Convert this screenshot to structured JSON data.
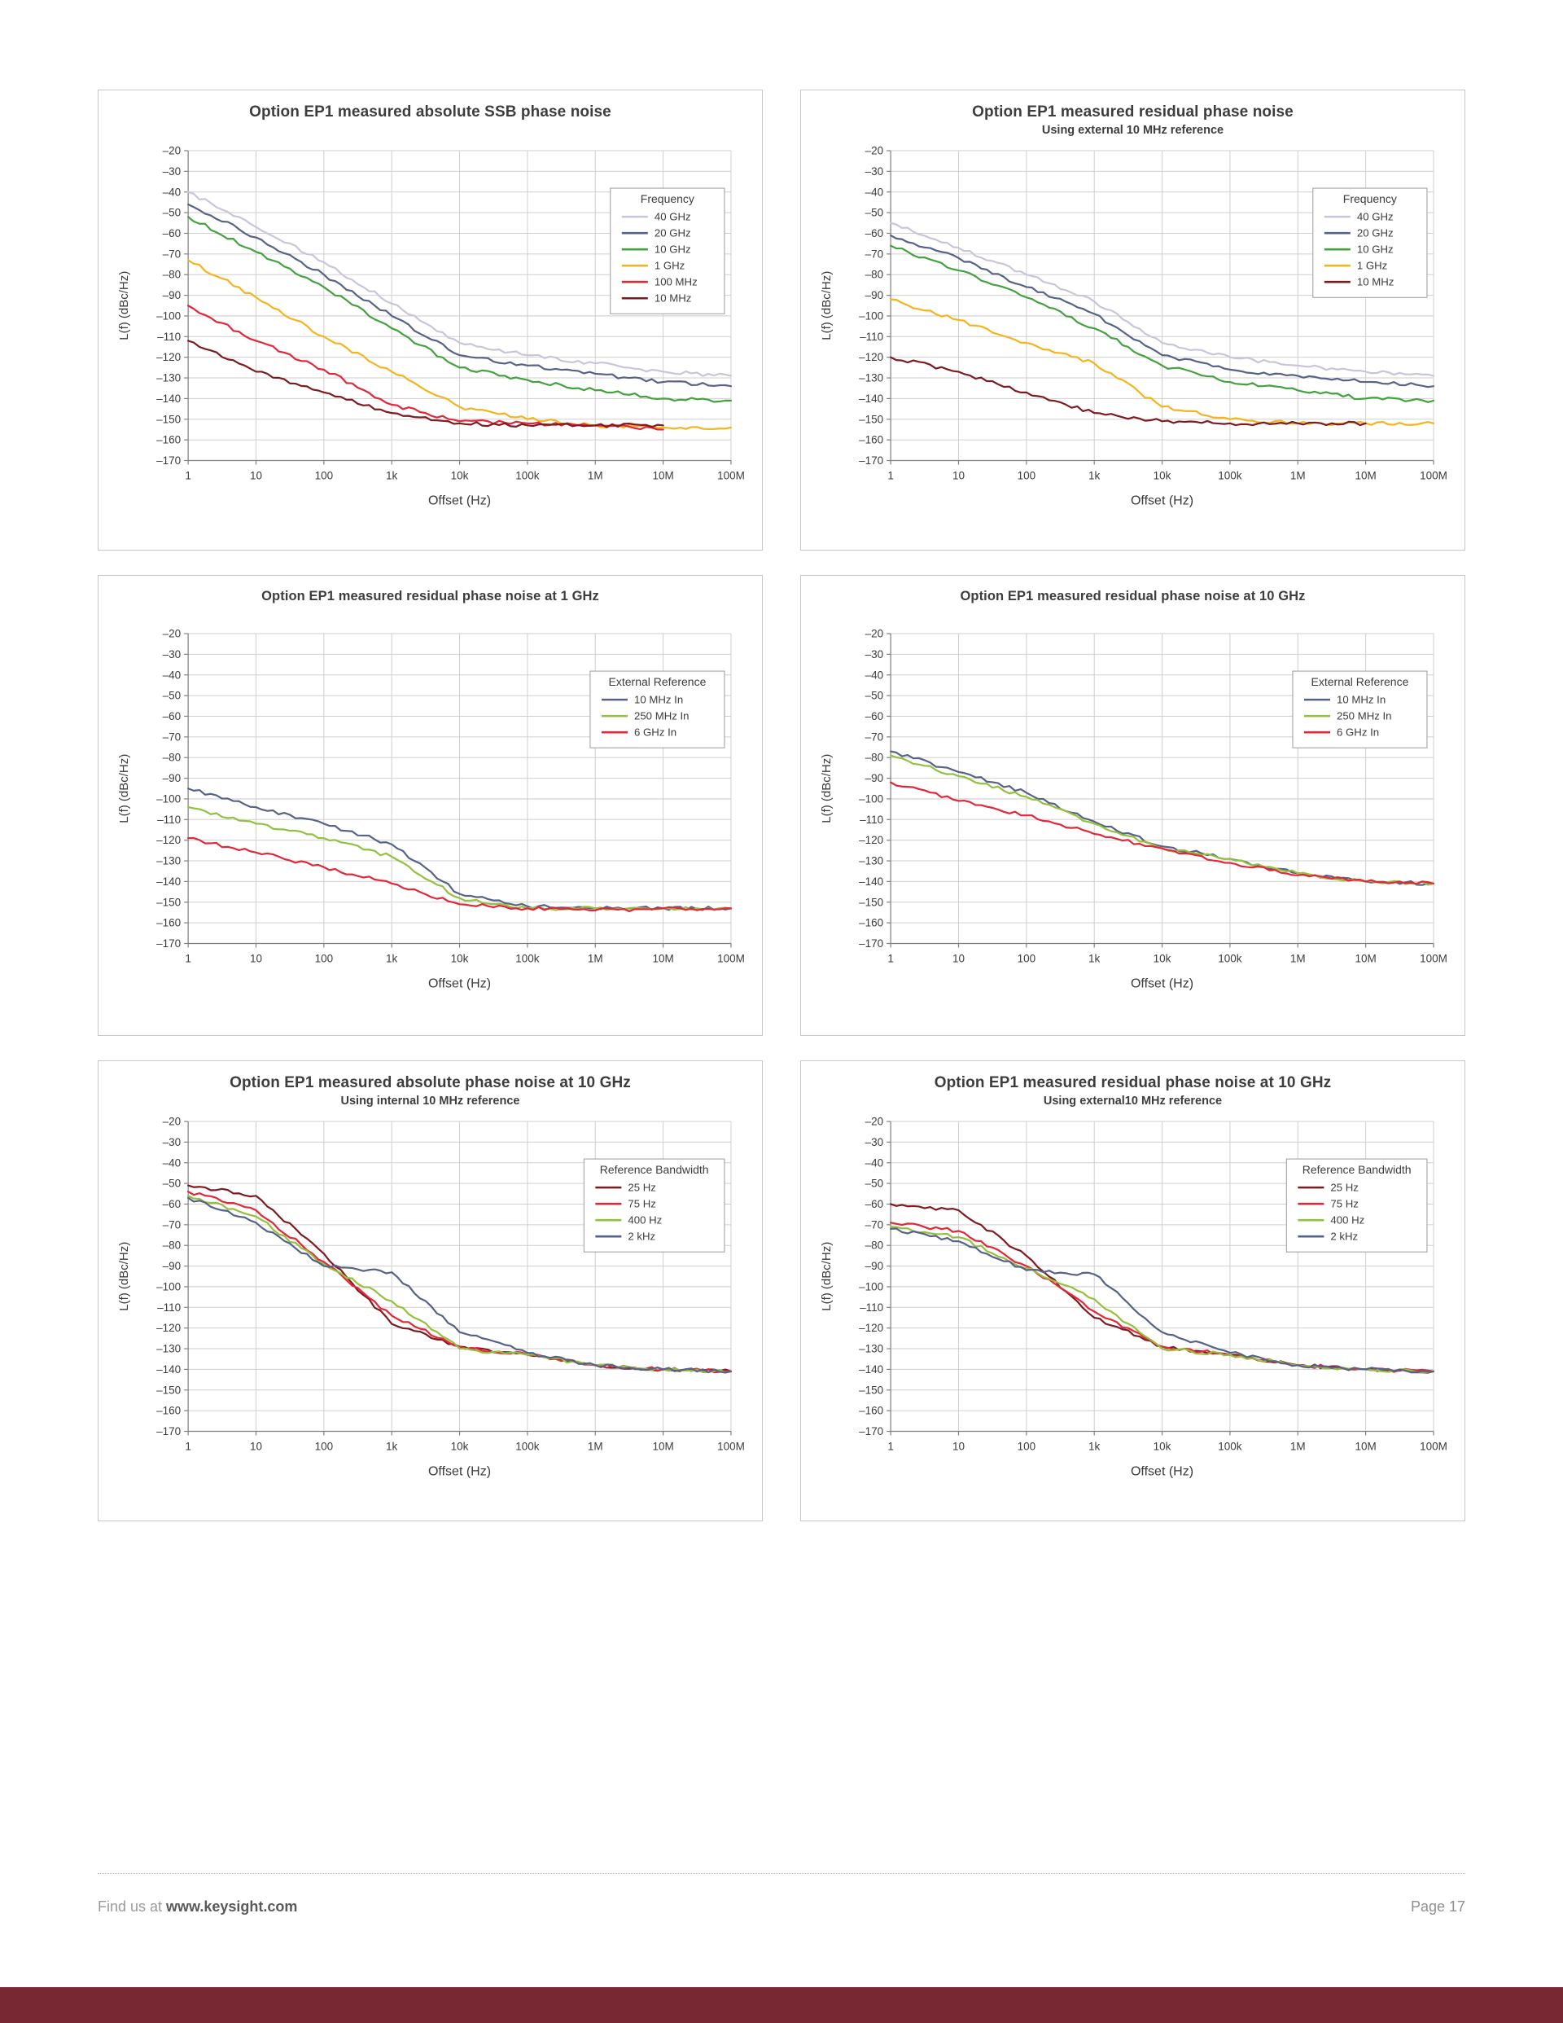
{
  "footer": {
    "find_us_prefix": "Find us at ",
    "site": "www.keysight.com",
    "page": "Page 17"
  },
  "colors": {
    "accent_bar": "#772832",
    "grid": "#cfcfcf",
    "axis": "#808080",
    "text": "#3c3c3c"
  },
  "chart_data": [
    {
      "type": "line",
      "title": "Option EP1 measured absolute SSB phase noise",
      "subtitle": "",
      "xlabel": "Offset (Hz)",
      "ylabel": "L(f) (dBc/Hz)",
      "x_ticks": [
        "1",
        "10",
        "100",
        "1k",
        "10k",
        "100k",
        "1M",
        "10M",
        "100M"
      ],
      "ylim": [
        -170,
        -20
      ],
      "y_step": 10,
      "grid": true,
      "legend_title": "Frequency",
      "legend_position": "top-right",
      "series": [
        {
          "name": "40 GHz",
          "color": "#cbc4d9",
          "values": [
            -40,
            -57,
            -74,
            -94,
            -113,
            -119,
            -123,
            -127,
            -129
          ]
        },
        {
          "name": "20 GHz",
          "color": "#566288",
          "values": [
            -46,
            -62,
            -80,
            -100,
            -119,
            -124,
            -128,
            -132,
            -134
          ]
        },
        {
          "name": "10 GHz",
          "color": "#44a13f",
          "values": [
            -52,
            -69,
            -86,
            -106,
            -125,
            -131,
            -136,
            -140,
            -141
          ]
        },
        {
          "name": "1 GHz",
          "color": "#f3b41c",
          "values": [
            -73,
            -91,
            -110,
            -127,
            -144,
            -150,
            -153,
            -154,
            -154
          ]
        },
        {
          "name": "100 MHz",
          "color": "#e32638",
          "values": [
            -95,
            -112,
            -126,
            -143,
            -151,
            -152,
            -153,
            -155,
            null
          ]
        },
        {
          "name": "10 MHz",
          "color": "#7d1b21",
          "values": [
            -112,
            -127,
            -137,
            -147,
            -152,
            -153,
            -153,
            -153,
            null
          ]
        }
      ]
    },
    {
      "type": "line",
      "title": "Option EP1 measured residual phase noise",
      "subtitle": "Using external 10 MHz reference",
      "xlabel": "Offset (Hz)",
      "ylabel": "L(f) (dBc/Hz)",
      "x_ticks": [
        "1",
        "10",
        "100",
        "1k",
        "10k",
        "100k",
        "1M",
        "10M",
        "100M"
      ],
      "ylim": [
        -170,
        -20
      ],
      "y_step": 10,
      "grid": true,
      "legend_title": "Frequency",
      "legend_position": "top-right",
      "series": [
        {
          "name": "40 GHz",
          "color": "#cbc4d9",
          "values": [
            -55,
            -67,
            -80,
            -93,
            -113,
            -120,
            -124,
            -127,
            -129
          ]
        },
        {
          "name": "20 GHz",
          "color": "#566288",
          "values": [
            -61,
            -72,
            -86,
            -99,
            -119,
            -126,
            -129,
            -132,
            -134
          ]
        },
        {
          "name": "10 GHz",
          "color": "#44a13f",
          "values": [
            -66,
            -78,
            -91,
            -106,
            -124,
            -132,
            -136,
            -140,
            -141
          ]
        },
        {
          "name": "1 GHz",
          "color": "#f3b41c",
          "values": [
            -92,
            -102,
            -113,
            -123,
            -144,
            -150,
            -152,
            -152,
            -152
          ]
        },
        {
          "name": "10 MHz",
          "color": "#7d1b21",
          "values": [
            -120,
            -127,
            -137,
            -147,
            -151,
            -152,
            -152,
            -152,
            null
          ]
        }
      ]
    },
    {
      "type": "line",
      "title": "Option EP1 measured residual phase noise at 1 GHz",
      "subtitle": "",
      "xlabel": "Offset (Hz)",
      "ylabel": "L(f) (dBc/Hz)",
      "x_ticks": [
        "1",
        "10",
        "100",
        "1k",
        "10k",
        "100k",
        "1M",
        "10M",
        "100M"
      ],
      "ylim": [
        -170,
        -20
      ],
      "y_step": 10,
      "grid": true,
      "legend_title": "External Reference",
      "legend_position": "top-right",
      "series": [
        {
          "name": "10 MHz In",
          "color": "#566288",
          "values": [
            -95,
            -104,
            -112,
            -122,
            -146,
            -152,
            -153,
            -153,
            -153
          ]
        },
        {
          "name": "250 MHz In",
          "color": "#94c13d",
          "values": [
            -104,
            -112,
            -119,
            -128,
            -148,
            -153,
            -153,
            -153,
            -153
          ]
        },
        {
          "name": "6 GHz In",
          "color": "#e32638",
          "values": [
            -119,
            -126,
            -133,
            -141,
            -151,
            -153,
            -154,
            -153,
            -153
          ]
        }
      ]
    },
    {
      "type": "line",
      "title": "Option EP1  measured residual phase noise at 10 GHz",
      "subtitle": "",
      "xlabel": "Offset (Hz)",
      "ylabel": "L(f) (dBc/Hz)",
      "x_ticks": [
        "1",
        "10",
        "100",
        "1k",
        "10k",
        "100k",
        "1M",
        "10M",
        "100M"
      ],
      "ylim": [
        -170,
        -20
      ],
      "y_step": 10,
      "grid": true,
      "legend_title": "External Reference",
      "legend_position": "top-right",
      "series": [
        {
          "name": "10 MHz In",
          "color": "#566288",
          "values": [
            -77,
            -87,
            -97,
            -111,
            -123,
            -129,
            -136,
            -140,
            -141
          ]
        },
        {
          "name": "250 MHz In",
          "color": "#94c13d",
          "values": [
            -79,
            -89,
            -99,
            -112,
            -124,
            -129,
            -136,
            -140,
            -141
          ]
        },
        {
          "name": "6 GHz In",
          "color": "#e32638",
          "values": [
            -92,
            -101,
            -108,
            -117,
            -124,
            -131,
            -137,
            -140,
            -141
          ]
        }
      ]
    },
    {
      "type": "line",
      "title": "Option EP1 measured absolute phase noise at 10 GHz",
      "subtitle": "Using internal 10 MHz reference",
      "xlabel": "Offset (Hz)",
      "ylabel": "L(f) (dBc/Hz)",
      "x_ticks": [
        "1",
        "10",
        "100",
        "1k",
        "10k",
        "100k",
        "1M",
        "10M",
        "100M"
      ],
      "ylim": [
        -170,
        -20
      ],
      "y_step": 10,
      "grid": true,
      "legend_title": "Reference Bandwidth",
      "legend_position": "top-right",
      "series": [
        {
          "name": "25 Hz",
          "color": "#7d1b21",
          "values": [
            -51,
            -56,
            -84,
            -118,
            -129,
            -133,
            -138,
            -140,
            -141
          ]
        },
        {
          "name": "75 Hz",
          "color": "#e32638",
          "values": [
            -54,
            -63,
            -88,
            -114,
            -129,
            -133,
            -138,
            -140,
            -141
          ]
        },
        {
          "name": "400 Hz",
          "color": "#94c13d",
          "values": [
            -56,
            -66,
            -89,
            -107,
            -130,
            -133,
            -138,
            -140,
            -141
          ]
        },
        {
          "name": "2 kHz",
          "color": "#566288",
          "values": [
            -57,
            -69,
            -90,
            -93,
            -122,
            -132,
            -138,
            -140,
            -141
          ]
        }
      ]
    },
    {
      "type": "line",
      "title": "Option EP1 measured residual phase noise at 10 GHz",
      "subtitle": "Using external10 MHz reference",
      "xlabel": "Offset (Hz)",
      "ylabel": "L(f) (dBc/Hz)",
      "x_ticks": [
        "1",
        "10",
        "100",
        "1k",
        "10k",
        "100k",
        "1M",
        "10M",
        "100M"
      ],
      "ylim": [
        -170,
        -20
      ],
      "y_step": 10,
      "grid": true,
      "legend_title": "Reference Bandwidth",
      "legend_position": "top-right",
      "series": [
        {
          "name": "25 Hz",
          "color": "#7d1b21",
          "values": [
            -60,
            -63,
            -85,
            -115,
            -129,
            -133,
            -138,
            -140,
            -141
          ]
        },
        {
          "name": "75 Hz",
          "color": "#e32638",
          "values": [
            -69,
            -73,
            -90,
            -112,
            -129,
            -133,
            -138,
            -140,
            -141
          ]
        },
        {
          "name": "400 Hz",
          "color": "#94c13d",
          "values": [
            -71,
            -76,
            -91,
            -106,
            -130,
            -133,
            -138,
            -140,
            -141
          ]
        },
        {
          "name": "2 kHz",
          "color": "#566288",
          "values": [
            -72,
            -78,
            -92,
            -94,
            -122,
            -132,
            -138,
            -140,
            -141
          ]
        }
      ]
    }
  ]
}
